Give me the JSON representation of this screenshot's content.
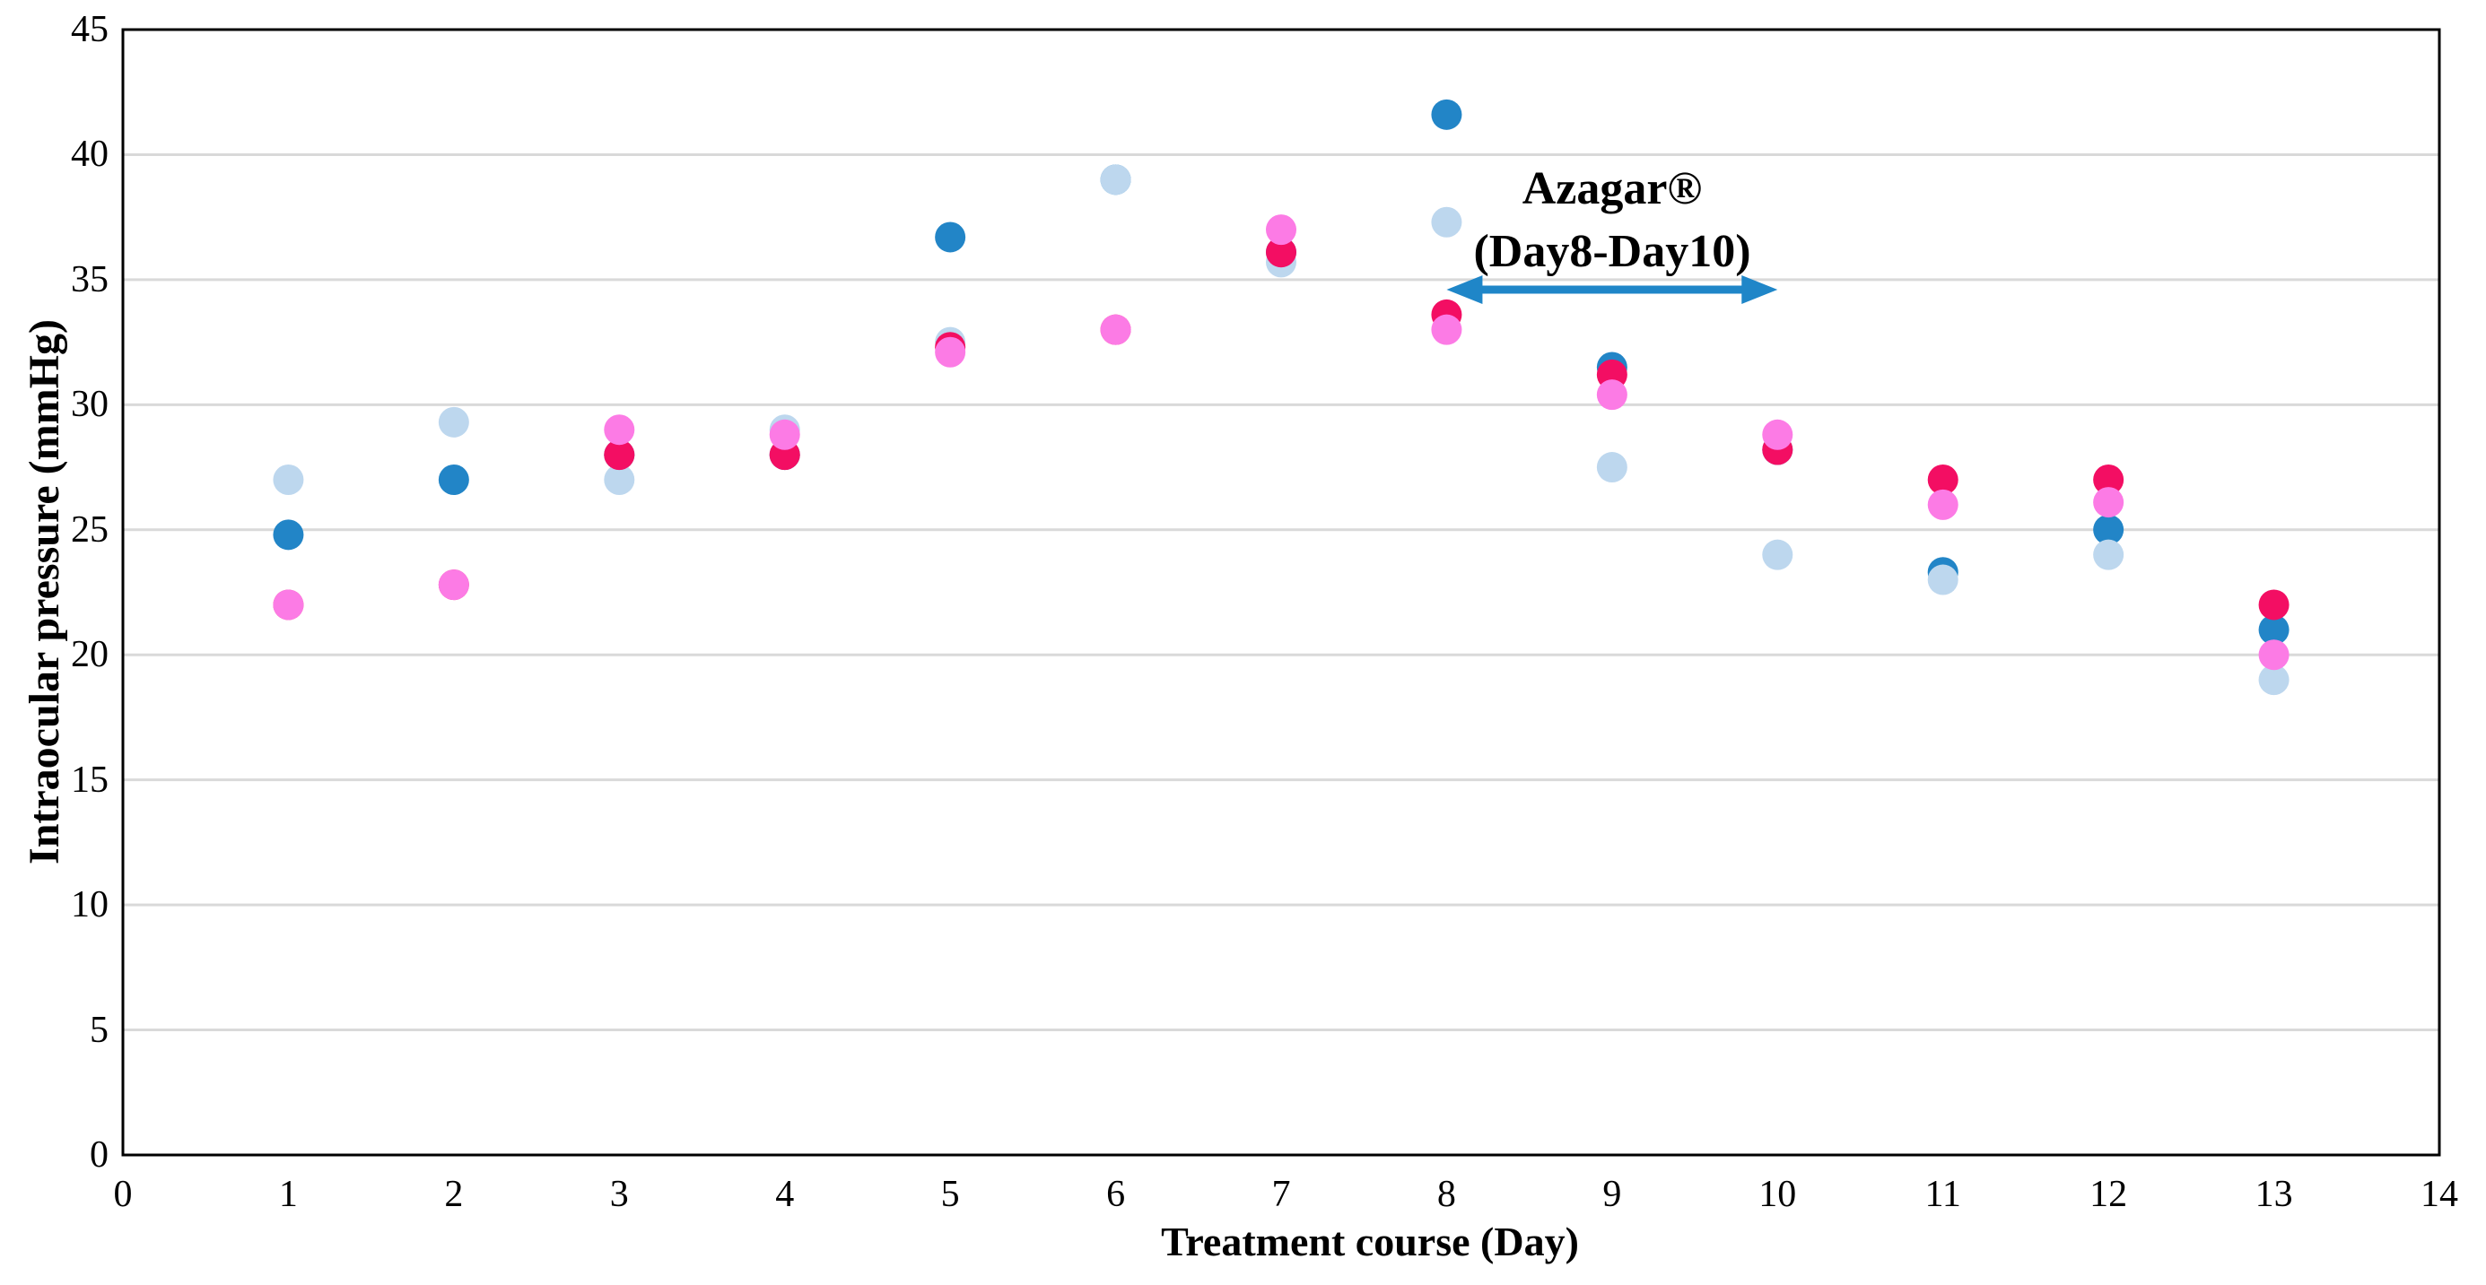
{
  "page": {
    "background": "#ffffff"
  },
  "chart_data": {
    "type": "scatter",
    "title": "",
    "xlabel": "Treatment course (Day)",
    "ylabel": "Intraocular pressure (mmHg)",
    "xlim": [
      0,
      14
    ],
    "ylim": [
      0,
      45
    ],
    "x_ticks": [
      0,
      1,
      2,
      3,
      4,
      5,
      6,
      7,
      8,
      9,
      10,
      11,
      12,
      13,
      14
    ],
    "y_ticks": [
      0,
      5,
      10,
      15,
      20,
      25,
      30,
      35,
      40,
      45
    ],
    "grid": "horizontal-only",
    "legend_position": "none",
    "marker": "circle",
    "x": [
      1,
      2,
      3,
      4,
      5,
      6,
      7,
      8,
      9,
      10,
      11,
      12,
      13
    ],
    "series": [
      {
        "name": "dark-blue-dots",
        "color": "#2285C7",
        "values": [
          24.8,
          27,
          28,
          28,
          36.7,
          39,
          36.1,
          41.6,
          31.5,
          28.2,
          23.3,
          25,
          21
        ]
      },
      {
        "name": "light-blue-dots",
        "color": "#BDD7EE",
        "values": [
          27,
          29.3,
          27,
          29,
          32.5,
          39,
          35.7,
          37.3,
          27.5,
          24,
          23,
          24,
          19
        ]
      },
      {
        "name": "crimson-dots",
        "color": "#F30E63",
        "values": [
          22,
          22.8,
          28,
          28,
          32.3,
          33,
          36.1,
          33.6,
          31.2,
          28.2,
          27,
          27,
          22
        ]
      },
      {
        "name": "magenta-dots",
        "color": "#FC7BE5",
        "values": [
          22,
          22.8,
          29,
          28.8,
          32.1,
          33,
          37,
          33,
          30.4,
          28.8,
          26,
          26.1,
          20
        ]
      }
    ],
    "annotation": {
      "line1": "Azagar®",
      "line2": "(Day8-Day10)",
      "text_center_day": 9,
      "arrow": {
        "from_day": 8,
        "to_day": 10,
        "at_value": 34.6,
        "color": "#1F86C8"
      }
    },
    "colors": {
      "grid": "#D9D9D9",
      "frame": "#000000"
    }
  }
}
